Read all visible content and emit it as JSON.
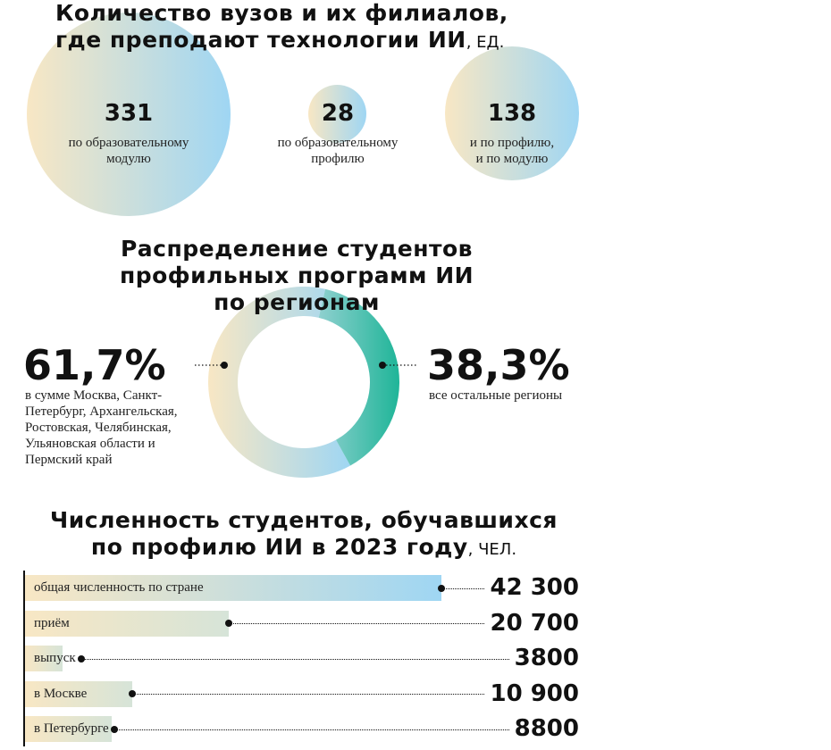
{
  "chart_data": [
    {
      "type": "bubble",
      "title_line1": "Количество вузов и их филиалов,",
      "title_line2": "где преподают технологии ИИ",
      "unit": ", ЕД.",
      "items": [
        {
          "value": 331,
          "label": "по образовательному модулю"
        },
        {
          "value": 28,
          "label": "по образовательному профилю"
        },
        {
          "value": 138,
          "label": "и по профилю, и по модулю"
        }
      ]
    },
    {
      "type": "pie",
      "title_line1": "Распределение студентов",
      "title_line2": "профильных программ ИИ",
      "title_line3": "по регионам",
      "slices": [
        {
          "value": 61.7,
          "value_label": "61,7%",
          "label": "в сумме Москва, Санкт-Петербург, Архангельская, Ростовская, Челябинская, Ульяновская области и Пермский край"
        },
        {
          "value": 38.3,
          "value_label": "38,3%",
          "label": "все остальные регионы"
        }
      ]
    },
    {
      "type": "bar",
      "title_line1": "Численность студентов, обучавшихся",
      "title_line2": "по профилю ИИ в 2023 году",
      "unit": ", ЧЕЛ.",
      "categories": [
        "общая численность по стране",
        "приём",
        "выпуск",
        "в Москве",
        "в Петербурге"
      ],
      "values": [
        42300,
        20700,
        3800,
        10900,
        8800
      ],
      "value_labels": [
        "42 300",
        "20 700",
        "3800",
        "10 900",
        "8800"
      ]
    }
  ],
  "colors": {
    "cream": "#f8e7c4",
    "sky": "#9fd6f3",
    "teal": "#1fb598",
    "ink": "#111111"
  }
}
